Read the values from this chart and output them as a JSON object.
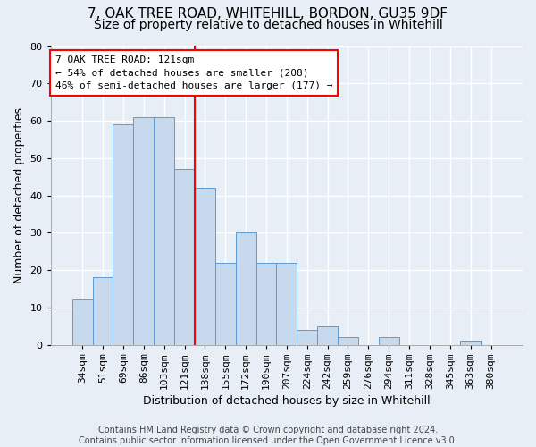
{
  "title": "7, OAK TREE ROAD, WHITEHILL, BORDON, GU35 9DF",
  "subtitle": "Size of property relative to detached houses in Whitehill",
  "xlabel": "Distribution of detached houses by size in Whitehill",
  "ylabel": "Number of detached properties",
  "categories": [
    "34sqm",
    "51sqm",
    "69sqm",
    "86sqm",
    "103sqm",
    "121sqm",
    "138sqm",
    "155sqm",
    "172sqm",
    "190sqm",
    "207sqm",
    "224sqm",
    "242sqm",
    "259sqm",
    "276sqm",
    "294sqm",
    "311sqm",
    "328sqm",
    "345sqm",
    "363sqm",
    "380sqm"
  ],
  "values": [
    12,
    18,
    59,
    61,
    61,
    47,
    42,
    22,
    30,
    22,
    22,
    4,
    5,
    2,
    0,
    2,
    0,
    0,
    0,
    1,
    0
  ],
  "bar_color": "#c6d9ed",
  "bar_edge_color": "#5b9bd5",
  "highlight_index": 5,
  "annotation_text": "7 OAK TREE ROAD: 121sqm\n← 54% of detached houses are smaller (208)\n46% of semi-detached houses are larger (177) →",
  "annotation_box_color": "white",
  "annotation_box_edge": "red",
  "vline_color": "red",
  "ylim": [
    0,
    80
  ],
  "yticks": [
    0,
    10,
    20,
    30,
    40,
    50,
    60,
    70,
    80
  ],
  "background_color": "#e8eef5",
  "grid_color": "white",
  "footer": "Contains HM Land Registry data © Crown copyright and database right 2024.\nContains public sector information licensed under the Open Government Licence v3.0.",
  "title_fontsize": 11,
  "subtitle_fontsize": 10,
  "xlabel_fontsize": 9,
  "ylabel_fontsize": 9,
  "tick_fontsize": 8,
  "footer_fontsize": 7,
  "annot_fontsize": 8
}
